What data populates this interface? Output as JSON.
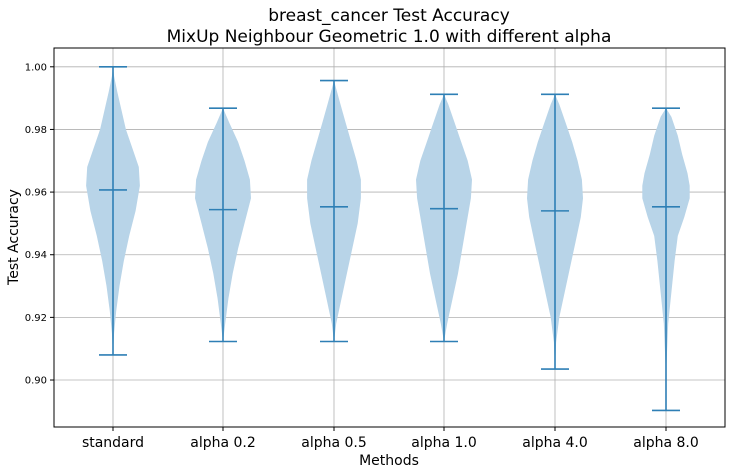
{
  "chart_data": {
    "type": "violin",
    "title": [
      "breast_cancer Test Accuracy",
      "MixUp Neighbour Geometric 1.0 with different alpha"
    ],
    "xlabel": "Methods",
    "ylabel": "Test Accuracy",
    "categories": [
      "standard",
      "alpha 0.2",
      "alpha 0.5",
      "alpha 1.0",
      "alpha 4.0",
      "alpha 8.0"
    ],
    "ylim": [
      0.885,
      1.006
    ],
    "yticks": [
      0.9,
      0.92,
      0.94,
      0.96,
      0.98,
      1.0
    ],
    "ytick_labels": [
      "0.90",
      "0.92",
      "0.94",
      "0.96",
      "0.98",
      "1.00"
    ],
    "grid": true,
    "colors": {
      "body": "#b8d4e8",
      "line": "#2e7fb5",
      "grid": "#b0b0b0"
    },
    "series": [
      {
        "min": 0.908,
        "mean": 0.9607,
        "max": 1.0,
        "density": [
          [
            0.908,
            0
          ],
          [
            0.915,
            1
          ],
          [
            0.922,
            3
          ],
          [
            0.93,
            6
          ],
          [
            0.938,
            10
          ],
          [
            0.946,
            15
          ],
          [
            0.954,
            21
          ],
          [
            0.962,
            25
          ],
          [
            0.968,
            24
          ],
          [
            0.974,
            18
          ],
          [
            0.98,
            12
          ],
          [
            0.986,
            8
          ],
          [
            0.992,
            4
          ],
          [
            0.997,
            1
          ],
          [
            1.0,
            0
          ]
        ]
      },
      {
        "min": 0.9123,
        "mean": 0.9544,
        "max": 0.9868,
        "density": [
          [
            0.9123,
            0
          ],
          [
            0.918,
            2
          ],
          [
            0.926,
            5
          ],
          [
            0.934,
            9
          ],
          [
            0.942,
            14
          ],
          [
            0.95,
            20
          ],
          [
            0.958,
            26
          ],
          [
            0.964,
            25
          ],
          [
            0.97,
            20
          ],
          [
            0.976,
            14
          ],
          [
            0.982,
            6
          ],
          [
            0.9868,
            0
          ]
        ]
      },
      {
        "min": 0.9123,
        "mean": 0.9553,
        "max": 0.9956,
        "density": [
          [
            0.9123,
            0
          ],
          [
            0.918,
            2
          ],
          [
            0.926,
            7
          ],
          [
            0.934,
            12
          ],
          [
            0.942,
            17
          ],
          [
            0.95,
            22
          ],
          [
            0.958,
            25
          ],
          [
            0.964,
            25
          ],
          [
            0.97,
            21
          ],
          [
            0.976,
            16
          ],
          [
            0.982,
            11
          ],
          [
            0.988,
            6
          ],
          [
            0.993,
            2
          ],
          [
            0.9956,
            0
          ]
        ]
      },
      {
        "min": 0.9123,
        "mean": 0.9547,
        "max": 0.9912,
        "density": [
          [
            0.9123,
            0
          ],
          [
            0.918,
            3
          ],
          [
            0.926,
            8
          ],
          [
            0.934,
            13
          ],
          [
            0.942,
            17
          ],
          [
            0.95,
            21
          ],
          [
            0.958,
            25
          ],
          [
            0.964,
            26
          ],
          [
            0.97,
            22
          ],
          [
            0.976,
            16
          ],
          [
            0.982,
            10
          ],
          [
            0.988,
            4
          ],
          [
            0.9912,
            0
          ]
        ]
      },
      {
        "min": 0.9035,
        "mean": 0.954,
        "max": 0.9912,
        "density": [
          [
            0.9035,
            0
          ],
          [
            0.912,
            1
          ],
          [
            0.92,
            4
          ],
          [
            0.928,
            9
          ],
          [
            0.936,
            14
          ],
          [
            0.944,
            19
          ],
          [
            0.952,
            24
          ],
          [
            0.958,
            26
          ],
          [
            0.964,
            25
          ],
          [
            0.97,
            21
          ],
          [
            0.976,
            16
          ],
          [
            0.982,
            10
          ],
          [
            0.988,
            4
          ],
          [
            0.9912,
            0
          ]
        ]
      },
      {
        "min": 0.8903,
        "mean": 0.9553,
        "max": 0.9868,
        "density": [
          [
            0.8903,
            0
          ],
          [
            0.905,
            0.5
          ],
          [
            0.918,
            2
          ],
          [
            0.928,
            5
          ],
          [
            0.938,
            8
          ],
          [
            0.946,
            11
          ],
          [
            0.952,
            17
          ],
          [
            0.958,
            22
          ],
          [
            0.962,
            22
          ],
          [
            0.966,
            20
          ],
          [
            0.972,
            15
          ],
          [
            0.978,
            11
          ],
          [
            0.984,
            5
          ],
          [
            0.9868,
            0
          ]
        ]
      }
    ]
  }
}
